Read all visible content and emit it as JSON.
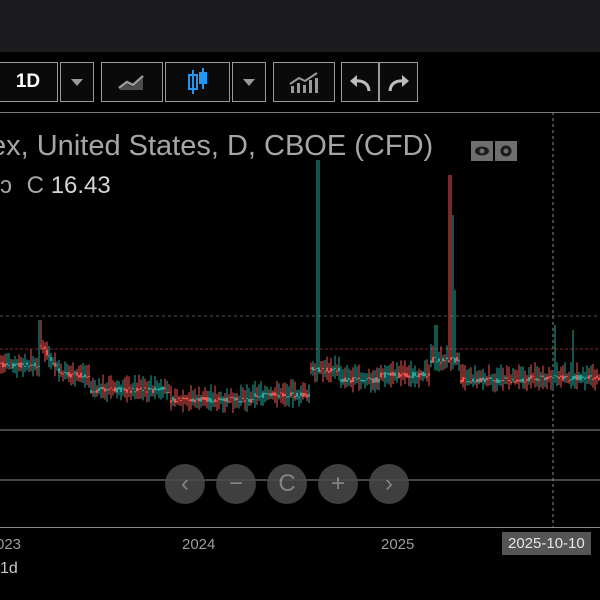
{
  "toolbar": {
    "interval": "1D",
    "icons": [
      "interval-dropdown",
      "line-chart-icon",
      "candlestick-icon",
      "chart-type-dropdown",
      "indicators-icon",
      "undo-icon",
      "redo-icon"
    ]
  },
  "legend": {
    "title": "ex, United States, D, CBOE (CFD)",
    "close_prefix_left": "ɔ",
    "close_label": "C",
    "close_value": "16.43"
  },
  "nav": [
    "‹",
    "−",
    "C",
    "+",
    "›"
  ],
  "xaxis": {
    "labels": [
      "023",
      "2024",
      "2025"
    ],
    "selected": "2025-10-10"
  },
  "bottom": {
    "range": "1d"
  },
  "colors": {
    "up": "#26a69a",
    "down": "#ef5350",
    "accent": "#2196f3"
  }
}
